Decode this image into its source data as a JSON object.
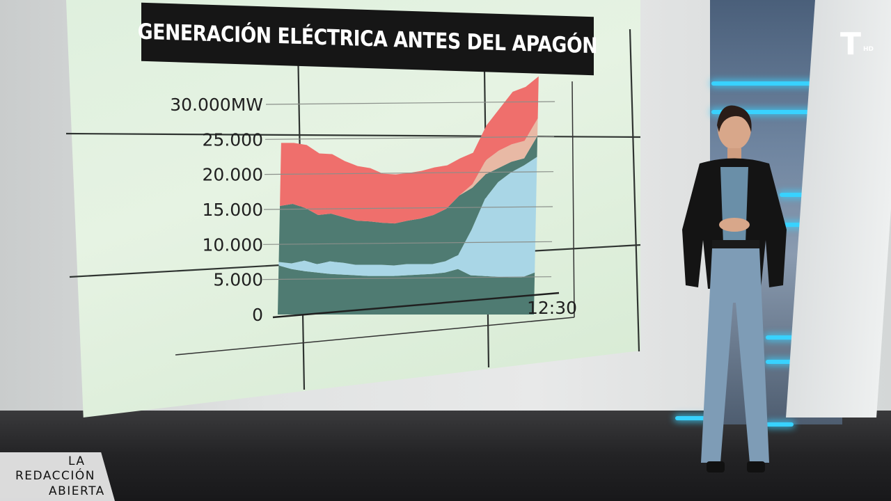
{
  "broadcast": {
    "channel_logo_letter": "T",
    "channel_logo_suffix": "HD",
    "program_line1": "LA",
    "program_line2": "REDACCIÓN",
    "program_line3": "ABIERTA"
  },
  "chart_data": {
    "type": "area",
    "title": "GENERACIÓN ELÉCTRICA ANTES DEL APAGÓN",
    "ylim": [
      0,
      30000
    ],
    "yticks": [
      {
        "value": 30000,
        "label": "30.000MW"
      },
      {
        "value": 25000,
        "label": "25.000"
      },
      {
        "value": 20000,
        "label": "20.000"
      },
      {
        "value": 15000,
        "label": "15.000"
      },
      {
        "value": 10000,
        "label": "10.000"
      },
      {
        "value": 5000,
        "label": "5.000"
      },
      {
        "value": 0,
        "label": "0"
      }
    ],
    "x_end_label": "12:30",
    "x_index": [
      0,
      1,
      2,
      3,
      4,
      5,
      6,
      7,
      8,
      9,
      10,
      11,
      12,
      13,
      14,
      15,
      16,
      17,
      18,
      19,
      20
    ],
    "series": [
      {
        "color": "#4f7b72",
        "values": [
          7000,
          6500,
          6200,
          6000,
          5800,
          5700,
          5600,
          5500,
          5500,
          5500,
          5600,
          5700,
          5800,
          6000,
          6500,
          5600,
          5500,
          5400,
          5300,
          5300,
          6000
        ]
      },
      {
        "color": "#a9d6e6",
        "values": [
          500,
          800,
          1500,
          1200,
          1800,
          1700,
          1500,
          1600,
          1600,
          1500,
          1600,
          1500,
          1400,
          1600,
          2000,
          6500,
          11000,
          13500,
          15000,
          16000,
          16500
        ]
      },
      {
        "color": "#4f7b72",
        "values": [
          8000,
          8500,
          7500,
          7000,
          6800,
          6500,
          6300,
          6200,
          6000,
          6000,
          6200,
          6500,
          7000,
          7500,
          8500,
          6000,
          3500,
          2000,
          1500,
          1000,
          3000
        ]
      },
      {
        "color": "#e8b9a5",
        "values": [
          0,
          0,
          0,
          0,
          0,
          0,
          0,
          0,
          0,
          0,
          0,
          0,
          0,
          0,
          0,
          500,
          2000,
          2500,
          2500,
          2500,
          2500
        ]
      },
      {
        "color": "#ef6f6c",
        "values": [
          9000,
          8700,
          9000,
          8800,
          8500,
          8000,
          7800,
          7600,
          7000,
          7000,
          6800,
          6800,
          6800,
          6200,
          5300,
          4500,
          5000,
          6000,
          7500,
          7700,
          6000
        ]
      }
    ]
  }
}
